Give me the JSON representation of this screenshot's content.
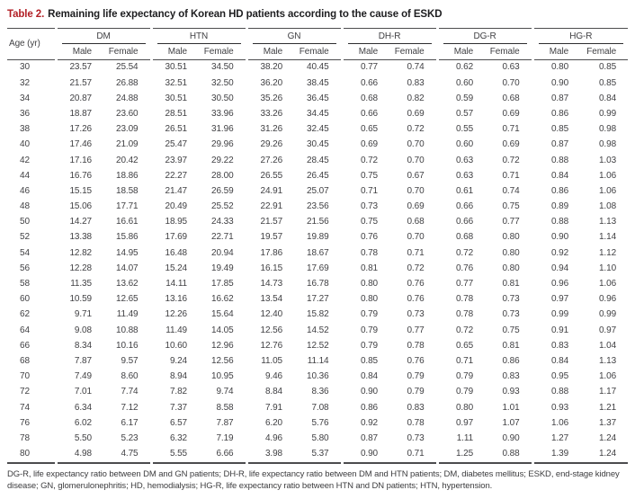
{
  "title": {
    "label": "Table 2.",
    "text": "Remaining life expectancy of Korean HD patients according to the cause of ESKD"
  },
  "colors": {
    "title_accent": "#b21e24",
    "body_text": "#414144",
    "rule": "#4c4c4e"
  },
  "table": {
    "age_header": "Age (yr)",
    "groups": [
      "DM",
      "HTN",
      "GN",
      "DH-R",
      "DG-R",
      "HG-R"
    ],
    "sub_headers": [
      "Male",
      "Female"
    ],
    "rows": [
      {
        "age": "30",
        "values": [
          "23.57",
          "25.54",
          "30.51",
          "34.50",
          "38.20",
          "40.45",
          "0.77",
          "0.74",
          "0.62",
          "0.63",
          "0.80",
          "0.85"
        ]
      },
      {
        "age": "32",
        "values": [
          "21.57",
          "26.88",
          "32.51",
          "32.50",
          "36.20",
          "38.45",
          "0.66",
          "0.83",
          "0.60",
          "0.70",
          "0.90",
          "0.85"
        ]
      },
      {
        "age": "34",
        "values": [
          "20.87",
          "24.88",
          "30.51",
          "30.50",
          "35.26",
          "36.45",
          "0.68",
          "0.82",
          "0.59",
          "0.68",
          "0.87",
          "0.84"
        ]
      },
      {
        "age": "36",
        "values": [
          "18.87",
          "23.60",
          "28.51",
          "33.96",
          "33.26",
          "34.45",
          "0.66",
          "0.69",
          "0.57",
          "0.69",
          "0.86",
          "0.99"
        ]
      },
      {
        "age": "38",
        "values": [
          "17.26",
          "23.09",
          "26.51",
          "31.96",
          "31.26",
          "32.45",
          "0.65",
          "0.72",
          "0.55",
          "0.71",
          "0.85",
          "0.98"
        ]
      },
      {
        "age": "40",
        "values": [
          "17.46",
          "21.09",
          "25.47",
          "29.96",
          "29.26",
          "30.45",
          "0.69",
          "0.70",
          "0.60",
          "0.69",
          "0.87",
          "0.98"
        ]
      },
      {
        "age": "42",
        "values": [
          "17.16",
          "20.42",
          "23.97",
          "29.22",
          "27.26",
          "28.45",
          "0.72",
          "0.70",
          "0.63",
          "0.72",
          "0.88",
          "1.03"
        ]
      },
      {
        "age": "44",
        "values": [
          "16.76",
          "18.86",
          "22.27",
          "28.00",
          "26.55",
          "26.45",
          "0.75",
          "0.67",
          "0.63",
          "0.71",
          "0.84",
          "1.06"
        ]
      },
      {
        "age": "46",
        "values": [
          "15.15",
          "18.58",
          "21.47",
          "26.59",
          "24.91",
          "25.07",
          "0.71",
          "0.70",
          "0.61",
          "0.74",
          "0.86",
          "1.06"
        ]
      },
      {
        "age": "48",
        "values": [
          "15.06",
          "17.71",
          "20.49",
          "25.52",
          "22.91",
          "23.56",
          "0.73",
          "0.69",
          "0.66",
          "0.75",
          "0.89",
          "1.08"
        ]
      },
      {
        "age": "50",
        "values": [
          "14.27",
          "16.61",
          "18.95",
          "24.33",
          "21.57",
          "21.56",
          "0.75",
          "0.68",
          "0.66",
          "0.77",
          "0.88",
          "1.13"
        ]
      },
      {
        "age": "52",
        "values": [
          "13.38",
          "15.86",
          "17.69",
          "22.71",
          "19.57",
          "19.89",
          "0.76",
          "0.70",
          "0.68",
          "0.80",
          "0.90",
          "1.14"
        ]
      },
      {
        "age": "54",
        "values": [
          "12.82",
          "14.95",
          "16.48",
          "20.94",
          "17.86",
          "18.67",
          "0.78",
          "0.71",
          "0.72",
          "0.80",
          "0.92",
          "1.12"
        ]
      },
      {
        "age": "56",
        "values": [
          "12.28",
          "14.07",
          "15.24",
          "19.49",
          "16.15",
          "17.69",
          "0.81",
          "0.72",
          "0.76",
          "0.80",
          "0.94",
          "1.10"
        ]
      },
      {
        "age": "58",
        "values": [
          "11.35",
          "13.62",
          "14.11",
          "17.85",
          "14.73",
          "16.78",
          "0.80",
          "0.76",
          "0.77",
          "0.81",
          "0.96",
          "1.06"
        ]
      },
      {
        "age": "60",
        "values": [
          "10.59",
          "12.65",
          "13.16",
          "16.62",
          "13.54",
          "17.27",
          "0.80",
          "0.76",
          "0.78",
          "0.73",
          "0.97",
          "0.96"
        ]
      },
      {
        "age": "62",
        "values": [
          "9.71",
          "11.49",
          "12.26",
          "15.64",
          "12.40",
          "15.82",
          "0.79",
          "0.73",
          "0.78",
          "0.73",
          "0.99",
          "0.99"
        ]
      },
      {
        "age": "64",
        "values": [
          "9.08",
          "10.88",
          "11.49",
          "14.05",
          "12.56",
          "14.52",
          "0.79",
          "0.77",
          "0.72",
          "0.75",
          "0.91",
          "0.97"
        ]
      },
      {
        "age": "66",
        "values": [
          "8.34",
          "10.16",
          "10.60",
          "12.96",
          "12.76",
          "12.52",
          "0.79",
          "0.78",
          "0.65",
          "0.81",
          "0.83",
          "1.04"
        ]
      },
      {
        "age": "68",
        "values": [
          "7.87",
          "9.57",
          "9.24",
          "12.56",
          "11.05",
          "11.14",
          "0.85",
          "0.76",
          "0.71",
          "0.86",
          "0.84",
          "1.13"
        ]
      },
      {
        "age": "70",
        "values": [
          "7.49",
          "8.60",
          "8.94",
          "10.95",
          "9.46",
          "10.36",
          "0.84",
          "0.79",
          "0.79",
          "0.83",
          "0.95",
          "1.06"
        ]
      },
      {
        "age": "72",
        "values": [
          "7.01",
          "7.74",
          "7.82",
          "9.74",
          "8.84",
          "8.36",
          "0.90",
          "0.79",
          "0.79",
          "0.93",
          "0.88",
          "1.17"
        ]
      },
      {
        "age": "74",
        "values": [
          "6.34",
          "7.12",
          "7.37",
          "8.58",
          "7.91",
          "7.08",
          "0.86",
          "0.83",
          "0.80",
          "1.01",
          "0.93",
          "1.21"
        ]
      },
      {
        "age": "76",
        "values": [
          "6.02",
          "6.17",
          "6.57",
          "7.87",
          "6.20",
          "5.76",
          "0.92",
          "0.78",
          "0.97",
          "1.07",
          "1.06",
          "1.37"
        ]
      },
      {
        "age": "78",
        "values": [
          "5.50",
          "5.23",
          "6.32",
          "7.19",
          "4.96",
          "5.80",
          "0.87",
          "0.73",
          "1.11",
          "0.90",
          "1.27",
          "1.24"
        ]
      },
      {
        "age": "80",
        "values": [
          "4.98",
          "4.75",
          "5.55",
          "6.66",
          "3.98",
          "5.37",
          "0.90",
          "0.71",
          "1.25",
          "0.88",
          "1.39",
          "1.24"
        ]
      }
    ]
  },
  "footnote": "DG-R, life expectancy ratio between DM and GN patients; DH-R, life expectancy ratio between DM and HTN patients; DM, diabetes mellitus; ESKD, end-stage kidney disease; GN, glomerulonephritis; HD, hemodialysis; HG-R, life expectancy ratio between HTN and DN patients; HTN, hypertension."
}
